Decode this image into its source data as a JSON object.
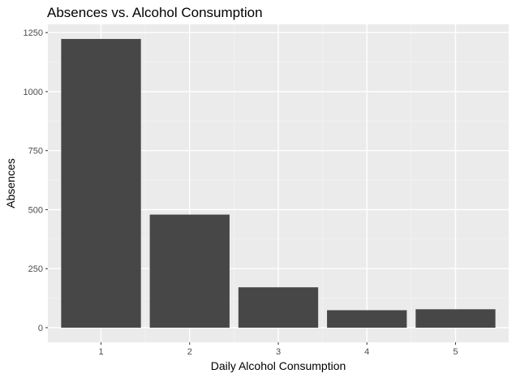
{
  "chart_data": {
    "type": "bar",
    "title": "Absences vs. Alcohol Consumption",
    "xlabel": "Daily Alcohol Consumption",
    "ylabel": "Absences",
    "categories": [
      "1",
      "2",
      "3",
      "4",
      "5"
    ],
    "values": [
      1223,
      479,
      171,
      74,
      78
    ],
    "yticks": [
      0,
      250,
      500,
      750,
      1000,
      1250
    ],
    "ytick_labels": [
      "0",
      "250",
      "500",
      "750",
      "1000",
      "1250"
    ],
    "ylim": [
      -62,
      1285
    ],
    "grid": true,
    "legend": "none",
    "colors": {
      "panel_background": "#EBEBEB",
      "grid_major": "#FFFFFF",
      "grid_minor": "#F2F2F2",
      "bar_fill": "#474747",
      "text": "#000000",
      "tick_text": "#4D4D4D",
      "tick_mark": "#333333"
    }
  }
}
